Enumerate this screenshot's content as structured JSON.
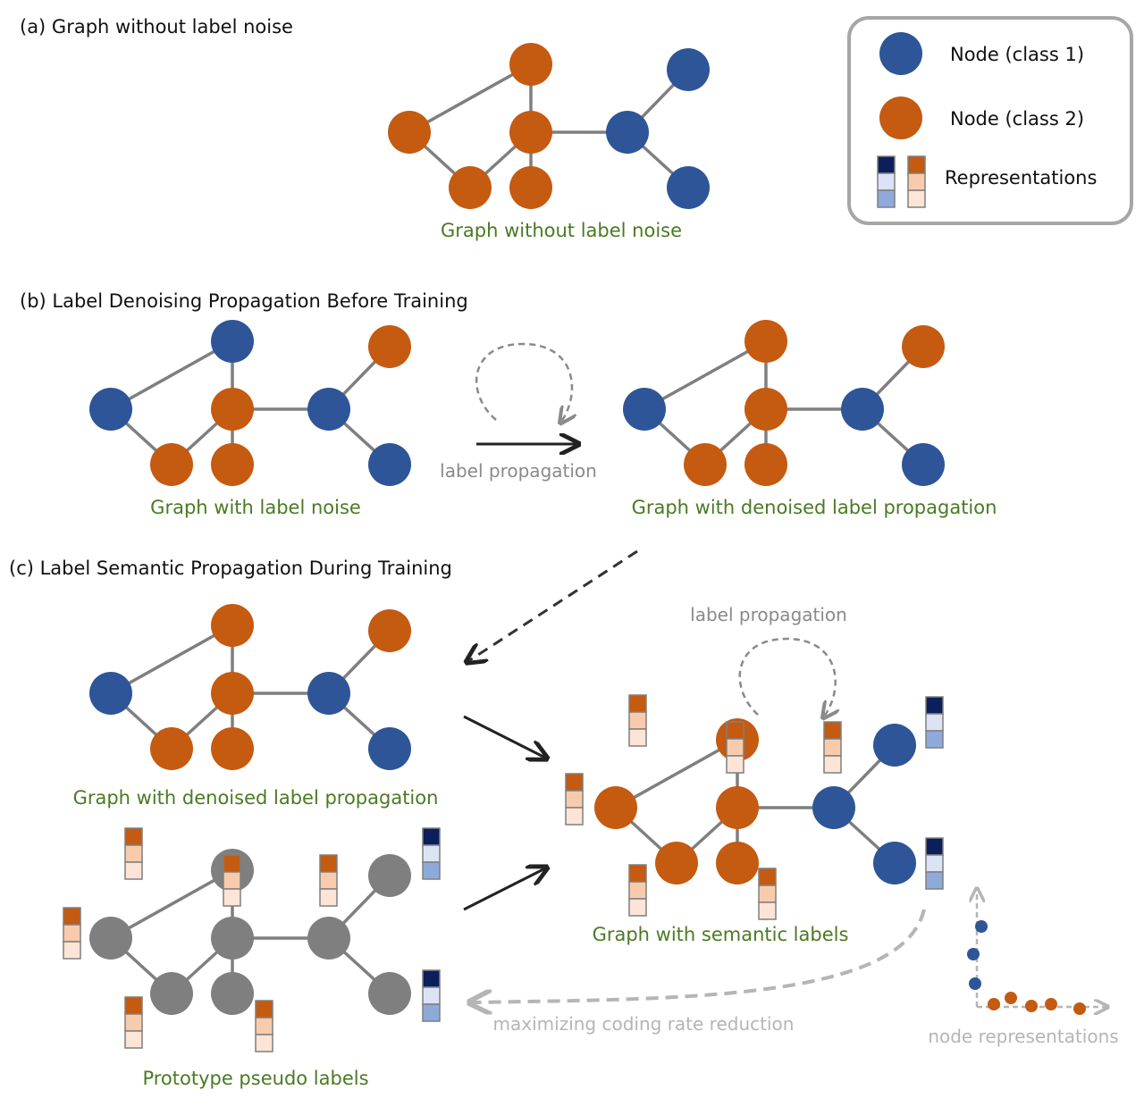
{
  "sections": {
    "a": "(a) Graph without label noise",
    "b": "(b) Label Denoising Propagation Before Training",
    "c": "(c) Label Semantic Propagation During Training"
  },
  "captions": {
    "graph_a": "Graph without label noise",
    "graph_b1": "Graph with label noise",
    "graph_b2": "Graph with denoised label propagation",
    "graph_c1": "Graph with denoised label propagation",
    "graph_c2": "Prototype pseudo labels",
    "graph_c3": "Graph with semantic labels"
  },
  "arrows": {
    "label_propagation_b": "label propagation",
    "label_propagation_c": "label propagation",
    "coding_rate": "maximizing coding rate reduction",
    "node_representations": "node representations"
  },
  "legend": {
    "class1": "Node (class 1)",
    "class2": "Node (class 2)",
    "representations": "Representations"
  },
  "colors": {
    "class1": "#2e5597",
    "class2": "#c55a11",
    "unlabeled": "#7f7f7f",
    "caption": "#4a7a22",
    "edge": "#7f7f7f",
    "rep_blue_top": "#0b1f5c",
    "rep_blue_mid": "#dbe3f4",
    "rep_blue_bot": "#8eaadb",
    "rep_orange_top": "#c55a11",
    "rep_orange_mid": "#f8cbad",
    "rep_orange_bot": "#fce4d6"
  },
  "graphs": {
    "a": [
      "class2",
      "class2",
      "class2",
      "class2",
      "class2",
      "class1",
      "class1",
      "class1"
    ],
    "b1": [
      "class1",
      "class1",
      "class2",
      "class2",
      "class2",
      "class1",
      "class2",
      "class1"
    ],
    "b2": [
      "class2",
      "class1",
      "class2",
      "class2",
      "class2",
      "class1",
      "class2",
      "class1"
    ],
    "c1": [
      "class2",
      "class1",
      "class2",
      "class2",
      "class2",
      "class1",
      "class2",
      "class1"
    ],
    "c2": [
      "unlabeled",
      "unlabeled",
      "unlabeled",
      "unlabeled",
      "unlabeled",
      "unlabeled",
      "unlabeled",
      "unlabeled"
    ],
    "c3": [
      "class2",
      "class2",
      "class2",
      "class2",
      "class2",
      "class1",
      "class1",
      "class1"
    ]
  }
}
